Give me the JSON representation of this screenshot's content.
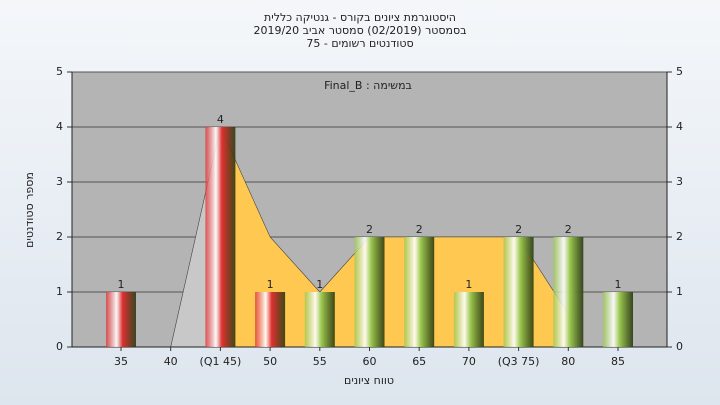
{
  "chart_data": {
    "type": "bar",
    "title": [
      "היסטוגרמת ציונים בקורס - גנטיקה כללית",
      "בסמסטר  (02/2019)  סמסטר אביב 2019/20",
      "סטודנטים רשומים - 75"
    ],
    "annotation": "Final_B : במשימה",
    "x_label": "טווח ציונים",
    "y_label": "מספר סטודנטים",
    "categories": [
      "35",
      "40",
      "(Q1 45)",
      "50",
      "55",
      "60",
      "65",
      "70",
      "(Q3 75)",
      "80",
      "85"
    ],
    "values": [
      1,
      0,
      4,
      1,
      1,
      2,
      2,
      1,
      2,
      2,
      1
    ],
    "colors": [
      "#e03030",
      "#e03030",
      "#e03030",
      "#e03030",
      "#9cc850",
      "#9cc850",
      "#9cc850",
      "#9cc850",
      "#9cc850",
      "#9cc850",
      "#9cc850"
    ],
    "areas": [
      {
        "color": "#c8c8c8",
        "values": [
          null,
          0,
          4,
          null,
          null,
          null,
          null,
          null,
          null,
          null,
          null
        ]
      },
      {
        "color": "#ffc850",
        "values": [
          null,
          null,
          4,
          2,
          1,
          2,
          2,
          2,
          2,
          0.6,
          null
        ]
      }
    ],
    "ylim": [
      0,
      5
    ],
    "yticks": [
      0,
      1,
      2,
      3,
      4,
      5
    ],
    "grid": true
  }
}
